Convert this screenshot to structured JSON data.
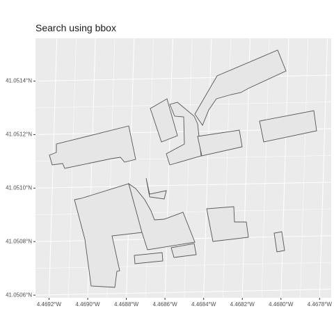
{
  "title": "Search using bbox",
  "map": {
    "type": "map",
    "background_color": "#ebebeb",
    "grid_color": "#ffffff",
    "feature_fill": "#e6e6e6",
    "feature_stroke": "#555555",
    "x_ticks": [
      {
        "value": -4.4692,
        "label": "4.4692°W"
      },
      {
        "value": -4.469,
        "label": "4.4690°W"
      },
      {
        "value": -4.4688,
        "label": "4.4688°W"
      },
      {
        "value": -4.4686,
        "label": "4.4686°W"
      },
      {
        "value": -4.4684,
        "label": "4.4684°W"
      },
      {
        "value": -4.4682,
        "label": "4.4682°W"
      },
      {
        "value": -4.468,
        "label": "4.4680°W"
      },
      {
        "value": -4.4678,
        "label": "4.4678°W"
      }
    ],
    "y_ticks": [
      {
        "value": 41.0506,
        "label": "41.0506°N"
      },
      {
        "value": 41.0508,
        "label": "41.0508°N"
      },
      {
        "value": 41.051,
        "label": "41.0510°N"
      },
      {
        "value": 41.0512,
        "label": "41.0512°N"
      },
      {
        "value": 41.0514,
        "label": "41.0514°N"
      }
    ],
    "xlim": [
      -4.46927,
      -4.46774
    ],
    "ylim": [
      41.05059,
      41.05156
    ],
    "buildings": [
      {
        "coords": [
          [
            -4.46907,
            41.05125
          ],
          [
            -4.46909,
            41.05122
          ],
          [
            -4.46914,
            41.05122
          ],
          [
            -4.46917,
            41.05118
          ],
          [
            -4.46915,
            41.05113
          ],
          [
            -4.46909,
            41.05112
          ],
          [
            -4.46907,
            41.0511
          ],
          [
            -4.46892,
            41.05112
          ],
          [
            -4.46877,
            41.05114
          ],
          [
            -4.46873,
            41.0512
          ],
          [
            -4.46876,
            41.05129
          ],
          [
            -4.4688,
            41.0513
          ],
          [
            -4.46907,
            41.05125
          ]
        ]
      },
      {
        "coords": [
          [
            -4.46871,
            41.0513
          ],
          [
            -4.46866,
            41.05133
          ],
          [
            -4.46861,
            41.05126
          ],
          [
            -4.46866,
            41.05123
          ],
          [
            -4.46871,
            41.0513
          ]
        ]
      },
      {
        "coords": [
          [
            -4.46863,
            41.05131
          ],
          [
            -4.46858,
            41.0513
          ],
          [
            -4.46858,
            41.0512
          ],
          [
            -4.46862,
            41.05118
          ],
          [
            -4.46866,
            41.05125
          ],
          [
            -4.46863,
            41.05131
          ]
        ]
      },
      {
        "coords": [
          [
            -4.46857,
            41.05132
          ],
          [
            -4.46853,
            41.0513
          ],
          [
            -4.4685,
            41.05118
          ],
          [
            -4.46849,
            41.05116
          ],
          [
            -4.46841,
            41.05113
          ],
          [
            -4.46843,
            41.05118
          ],
          [
            -4.46843,
            41.05127
          ],
          [
            -4.46841,
            41.05128
          ],
          [
            -4.46855,
            41.0513
          ],
          [
            -4.46857,
            41.05132
          ]
        ]
      },
      {
        "coords": [
          [
            -4.46843,
            41.05129
          ],
          [
            -4.4684,
            41.05125
          ],
          [
            -4.46833,
            41.05129
          ],
          [
            -4.46823,
            41.05141
          ],
          [
            -4.46796,
            41.05153
          ],
          [
            -4.46792,
            41.05146
          ],
          [
            -4.46821,
            41.05138
          ],
          [
            -4.46834,
            41.05133
          ],
          [
            -4.46843,
            41.05129
          ]
        ]
      },
      {
        "coords": [
          [
            -4.4684,
            41.05122
          ],
          [
            -4.46838,
            41.05114
          ],
          [
            -4.46824,
            41.05117
          ],
          [
            -4.46824,
            41.05119
          ],
          [
            -4.46815,
            41.0512
          ],
          [
            -4.46816,
            41.05126
          ],
          [
            -4.4684,
            41.05122
          ]
        ]
      },
      {
        "coords": [
          [
            -4.4681,
            41.05126
          ],
          [
            -4.46805,
            41.05118
          ],
          [
            -4.46783,
            41.05122
          ],
          [
            -4.46786,
            41.0513
          ],
          [
            -4.4681,
            41.05126
          ]
        ]
      },
      {
        "coords": [
          [
            -4.46905,
            41.05101
          ],
          [
            -4.46898,
            41.05104
          ],
          [
            -4.46875,
            41.05109
          ],
          [
            -4.46869,
            41.05102
          ],
          [
            -4.46862,
            41.05102
          ],
          [
            -4.4686,
            41.05105
          ],
          [
            -4.4685,
            41.05097
          ],
          [
            -4.46843,
            41.05089
          ],
          [
            -4.4685,
            41.05086
          ],
          [
            -4.46852,
            41.05079
          ],
          [
            -4.4687,
            41.05074
          ],
          [
            -4.4687,
            41.05072
          ],
          [
            -4.46889,
            41.0507
          ],
          [
            -4.469,
            41.05067
          ],
          [
            -4.46905,
            41.05067
          ],
          [
            -4.46905,
            41.05101
          ]
        ]
      },
      {
        "coords": [
          [
            -4.46843,
            41.05082
          ],
          [
            -4.46838,
            41.05075
          ],
          [
            -4.46829,
            41.05078
          ],
          [
            -4.46831,
            41.05085
          ],
          [
            -4.46843,
            41.05082
          ]
        ]
      },
      {
        "coords": [
          [
            -4.46835,
            41.05089
          ],
          [
            -4.4683,
            41.05078
          ],
          [
            -4.46818,
            41.05081
          ],
          [
            -4.46817,
            41.05086
          ],
          [
            -4.46821,
            41.05089
          ],
          [
            -4.46835,
            41.05089
          ]
        ]
      },
      {
        "coords": [
          [
            -4.46798,
            41.05077
          ],
          [
            -4.46796,
            41.05072
          ],
          [
            -4.4679,
            41.05072
          ],
          [
            -4.46792,
            41.05082
          ],
          [
            -4.46798,
            41.05077
          ]
        ]
      },
      {
        "coords": [
          [
            -4.46859,
            41.05073
          ],
          [
            -4.46844,
            41.05072
          ],
          [
            -4.46844,
            41.05077
          ],
          [
            -4.46859,
            41.05076
          ],
          [
            -4.46859,
            41.05073
          ]
        ]
      }
    ]
  }
}
